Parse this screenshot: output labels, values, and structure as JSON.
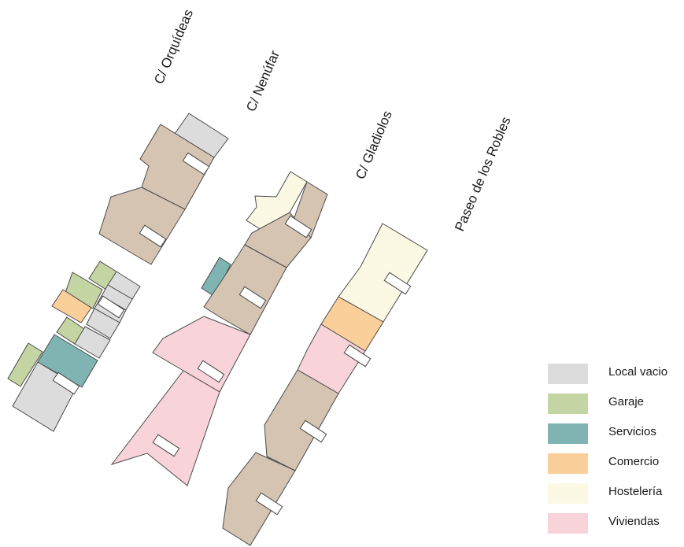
{
  "streets": {
    "orquideas": "C/ Orquídeas",
    "nenufar": "C/ Nenúfar",
    "gladiolos": "C/ Gladiolos",
    "paseo": "Paseo de los Robles"
  },
  "legend": [
    {
      "label": "Local vacio",
      "color": "#dcdcdc"
    },
    {
      "label": "Garaje",
      "color": "#c5d4a3"
    },
    {
      "label": "Servicios",
      "color": "#7fb4b2"
    },
    {
      "label": "Comercio",
      "color": "#fbcf9a"
    },
    {
      "label": "Hostelería",
      "color": "#fbf9e3"
    },
    {
      "label": "Viviendas",
      "color": "#f8d3da"
    }
  ],
  "colors": {
    "residential_block": "#d6c4b2",
    "outline": "#4a4a4a"
  }
}
